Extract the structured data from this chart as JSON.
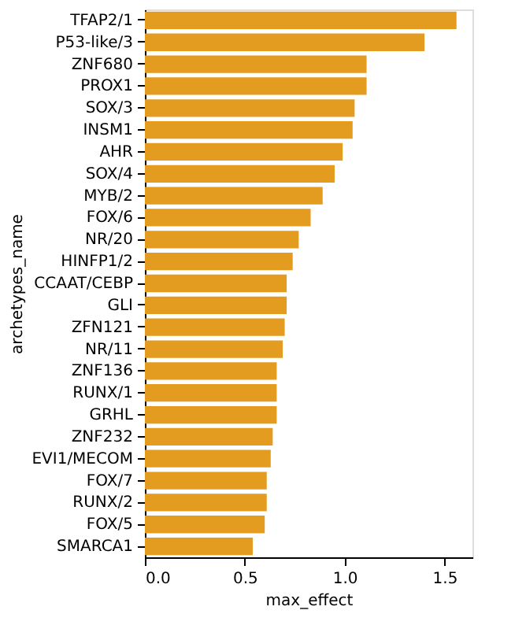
{
  "chart_data": {
    "type": "bar",
    "orientation": "horizontal",
    "xlabel": "max_effect",
    "ylabel": "archetypes_name",
    "categories": [
      "TFAP2/1",
      "P53-like/3",
      "ZNF680",
      "PROX1",
      "SOX/3",
      "INSM1",
      "AHR",
      "SOX/4",
      "MYB/2",
      "FOX/6",
      "NR/20",
      "HINFP1/2",
      "CCAAT/CEBP",
      "GLI",
      "ZFN121",
      "NR/11",
      "ZNF136",
      "RUNX/1",
      "GRHL",
      "ZNF232",
      "EVI1/MECOM",
      "FOX/7",
      "RUNX/2",
      "FOX/5",
      "SMARCA1"
    ],
    "values": [
      1.56,
      1.4,
      1.11,
      1.11,
      1.05,
      1.04,
      0.99,
      0.95,
      0.89,
      0.83,
      0.77,
      0.74,
      0.71,
      0.71,
      0.7,
      0.69,
      0.66,
      0.66,
      0.66,
      0.64,
      0.63,
      0.61,
      0.61,
      0.6,
      0.54
    ],
    "color": "#e39c20",
    "xlim": [
      0,
      1.64
    ],
    "xticks": [
      {
        "value": 0,
        "label": "0.0"
      },
      {
        "value": 0.5,
        "label": "0.5"
      },
      {
        "value": 1,
        "label": "1.0"
      },
      {
        "value": 1.5,
        "label": "1.5"
      }
    ],
    "grid": false
  }
}
